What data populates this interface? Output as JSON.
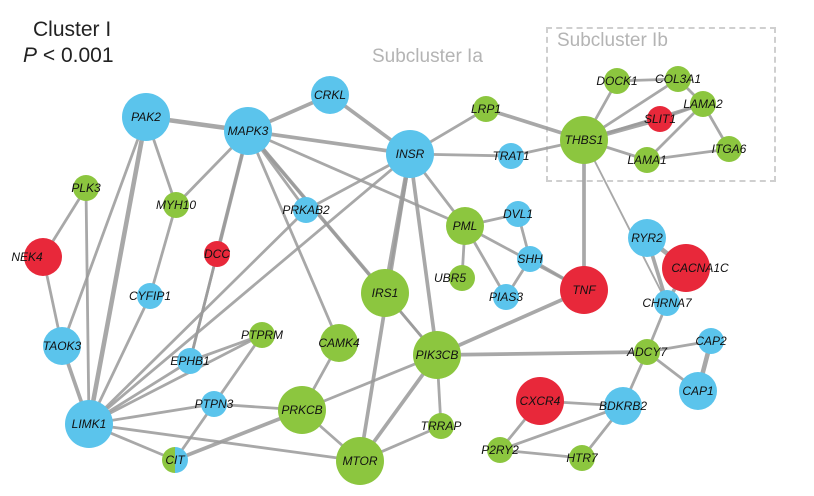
{
  "title": {
    "line1": "Cluster I",
    "p_letter": "P",
    "p_rest": " < 0.001"
  },
  "subclusters": {
    "a": "Subcluster Ia",
    "b": "Subcluster Ib"
  },
  "colors": {
    "blue": "#5bc4ec",
    "green": "#8cc63f",
    "red": "#e8283a",
    "edge": "#9a9a9a",
    "dash": "#cfcfcf"
  },
  "nodes": [
    {
      "id": "PAK2",
      "color": "blue",
      "size": "large"
    },
    {
      "id": "MAPK3",
      "color": "blue",
      "size": "large"
    },
    {
      "id": "CRKL",
      "color": "blue",
      "size": "medium"
    },
    {
      "id": "INSR",
      "color": "blue",
      "size": "large"
    },
    {
      "id": "LRP1",
      "color": "green",
      "size": "small"
    },
    {
      "id": "TRAT1",
      "color": "blue",
      "size": "small"
    },
    {
      "id": "THBS1",
      "color": "green",
      "size": "large"
    },
    {
      "id": "DOCK1",
      "color": "green",
      "size": "small"
    },
    {
      "id": "COL3A1",
      "color": "green",
      "size": "small"
    },
    {
      "id": "SLIT1",
      "color": "red",
      "size": "small"
    },
    {
      "id": "LAMA2",
      "color": "green",
      "size": "small"
    },
    {
      "id": "LAMA1",
      "color": "green",
      "size": "small"
    },
    {
      "id": "ITGA6",
      "color": "green",
      "size": "small"
    },
    {
      "id": "PLK3",
      "color": "green",
      "size": "small"
    },
    {
      "id": "MYH10",
      "color": "green",
      "size": "small"
    },
    {
      "id": "PRKAB2",
      "color": "blue",
      "size": "small"
    },
    {
      "id": "PML",
      "color": "green",
      "size": "medium"
    },
    {
      "id": "DVL1",
      "color": "blue",
      "size": "small"
    },
    {
      "id": "NEK4",
      "color": "red",
      "size": "medium"
    },
    {
      "id": "DCC",
      "color": "red",
      "size": "small"
    },
    {
      "id": "SHH",
      "color": "blue",
      "size": "small"
    },
    {
      "id": "RYR2",
      "color": "blue",
      "size": "medium"
    },
    {
      "id": "CACNA1C",
      "color": "red",
      "size": "large"
    },
    {
      "id": "UBR5",
      "color": "green",
      "size": "small"
    },
    {
      "id": "CYFIP1",
      "color": "blue",
      "size": "small"
    },
    {
      "id": "IRS1",
      "color": "green",
      "size": "large"
    },
    {
      "id": "PIAS3",
      "color": "blue",
      "size": "small"
    },
    {
      "id": "TNF",
      "color": "red",
      "size": "large"
    },
    {
      "id": "CHRNA7",
      "color": "blue",
      "size": "small"
    },
    {
      "id": "PTPRM",
      "color": "green",
      "size": "small"
    },
    {
      "id": "CAMK4",
      "color": "green",
      "size": "medium"
    },
    {
      "id": "TAOK3",
      "color": "blue",
      "size": "medium"
    },
    {
      "id": "EPHB1",
      "color": "blue",
      "size": "small"
    },
    {
      "id": "PIK3CB",
      "color": "green",
      "size": "large"
    },
    {
      "id": "ADCY7",
      "color": "green",
      "size": "small"
    },
    {
      "id": "CAP2",
      "color": "blue",
      "size": "small"
    },
    {
      "id": "CAP1",
      "color": "blue",
      "size": "medium"
    },
    {
      "id": "CXCR4",
      "color": "red",
      "size": "large"
    },
    {
      "id": "BDKRB2",
      "color": "blue",
      "size": "medium"
    },
    {
      "id": "PTPN3",
      "color": "blue",
      "size": "small"
    },
    {
      "id": "PRKCB",
      "color": "green",
      "size": "large"
    },
    {
      "id": "TRRAP",
      "color": "green",
      "size": "small"
    },
    {
      "id": "LIMK1",
      "color": "blue",
      "size": "large"
    },
    {
      "id": "P2RY2",
      "color": "green",
      "size": "small"
    },
    {
      "id": "HTR7",
      "color": "green",
      "size": "small"
    },
    {
      "id": "CIT",
      "color": "blue",
      "size": "small",
      "split": "green"
    },
    {
      "id": "MTOR",
      "color": "green",
      "size": "large"
    }
  ],
  "edges": [
    [
      "PAK2",
      "MAPK3",
      4
    ],
    [
      "PAK2",
      "MYH10",
      2
    ],
    [
      "PAK2",
      "LIMK1",
      4
    ],
    [
      "PAK2",
      "TAOK3",
      2
    ],
    [
      "MAPK3",
      "CRKL",
      3
    ],
    [
      "MAPK3",
      "INSR",
      3
    ],
    [
      "MAPK3",
      "PRKAB2",
      2
    ],
    [
      "MAPK3",
      "IRS1",
      3
    ],
    [
      "MAPK3",
      "CAMK4",
      2
    ],
    [
      "MAPK3",
      "DCC",
      3
    ],
    [
      "MAPK3",
      "EPHB1",
      2
    ],
    [
      "MAPK3",
      "PML",
      2
    ],
    [
      "MAPK3",
      "PIK3CB",
      2
    ],
    [
      "MAPK3",
      "MYH10",
      2
    ],
    [
      "CRKL",
      "INSR",
      3
    ],
    [
      "INSR",
      "LRP1",
      2
    ],
    [
      "INSR",
      "TRAT1",
      2
    ],
    [
      "INSR",
      "IRS1",
      4
    ],
    [
      "INSR",
      "PRKAB2",
      2
    ],
    [
      "INSR",
      "LIMK1",
      2
    ],
    [
      "INSR",
      "PIK3CB",
      3
    ],
    [
      "INSR",
      "MTOR",
      3
    ],
    [
      "INSR",
      "PML",
      2
    ],
    [
      "LRP1",
      "THBS1",
      3
    ],
    [
      "TRAT1",
      "THBS1",
      2
    ],
    [
      "THBS1",
      "DOCK1",
      2
    ],
    [
      "THBS1",
      "COL3A1",
      2
    ],
    [
      "THBS1",
      "SLIT1",
      4
    ],
    [
      "THBS1",
      "LAMA2",
      2
    ],
    [
      "THBS1",
      "LAMA1",
      2
    ],
    [
      "THBS1",
      "TNF",
      3
    ],
    [
      "THBS1",
      "CHRNA7",
      1
    ],
    [
      "COL3A1",
      "LAMA2",
      2
    ],
    [
      "COL3A1",
      "DOCK1",
      2
    ],
    [
      "LAMA2",
      "ITGA6",
      2
    ],
    [
      "LAMA2",
      "LAMA1",
      2
    ],
    [
      "LAMA1",
      "ITGA6",
      2
    ],
    [
      "SLIT1",
      "LAMA2",
      2
    ],
    [
      "PLK3",
      "NEK4",
      2
    ],
    [
      "PLK3",
      "LIMK1",
      2
    ],
    [
      "MYH10",
      "CYFIP1",
      2
    ],
    [
      "CYFIP1",
      "LIMK1",
      2
    ],
    [
      "NEK4",
      "TAOK3",
      2
    ],
    [
      "TAOK3",
      "LIMK1",
      3
    ],
    [
      "DCC",
      "EPHB1",
      2
    ],
    [
      "EPHB1",
      "LIMK1",
      2
    ],
    [
      "PML",
      "DVL1",
      2
    ],
    [
      "PML",
      "UBR5",
      2
    ],
    [
      "PML",
      "PIAS3",
      2
    ],
    [
      "PML",
      "TNF",
      2
    ],
    [
      "DVL1",
      "SHH",
      2
    ],
    [
      "SHH",
      "PIAS3",
      2
    ],
    [
      "SHH",
      "TNF",
      2
    ],
    [
      "TNF",
      "PIK3CB",
      3
    ],
    [
      "RYR2",
      "CACNA1C",
      4
    ],
    [
      "RYR2",
      "CHRNA7",
      3
    ],
    [
      "CHRNA7",
      "CACNA1C",
      3
    ],
    [
      "CHRNA7",
      "ADCY7",
      2
    ],
    [
      "PIK3CB",
      "ADCY7",
      3
    ],
    [
      "PIK3CB",
      "TRRAP",
      2
    ],
    [
      "PIK3CB",
      "MTOR",
      3
    ],
    [
      "PIK3CB",
      "PRKCB",
      2
    ],
    [
      "ADCY7",
      "CAP2",
      2
    ],
    [
      "ADCY7",
      "CAP1",
      2
    ],
    [
      "ADCY7",
      "BDKRB2",
      2
    ],
    [
      "CAP2",
      "CAP1",
      4
    ],
    [
      "CXCR4",
      "BDKRB2",
      2
    ],
    [
      "CXCR4",
      "P2RY2",
      2
    ],
    [
      "BDKRB2",
      "P2RY2",
      2
    ],
    [
      "BDKRB2",
      "HTR7",
      2
    ],
    [
      "P2RY2",
      "HTR7",
      2
    ],
    [
      "PTPRM",
      "LIMK1",
      2
    ],
    [
      "PTPRM",
      "CIT",
      2
    ],
    [
      "PTPRM",
      "EPHB1",
      2
    ],
    [
      "CAMK4",
      "PRKCB",
      2
    ],
    [
      "PRKCB",
      "CIT",
      3
    ],
    [
      "PRKCB",
      "MTOR",
      2
    ],
    [
      "PRKCB",
      "PTPN3",
      2
    ],
    [
      "TRRAP",
      "MTOR",
      2
    ],
    [
      "LIMK1",
      "PTPN3",
      2
    ],
    [
      "LIMK1",
      "CIT",
      2
    ],
    [
      "LIMK1",
      "MTOR",
      2
    ],
    [
      "LIMK1",
      "PRKAB2",
      2
    ],
    [
      "IRS1",
      "PIK3CB",
      2
    ]
  ]
}
